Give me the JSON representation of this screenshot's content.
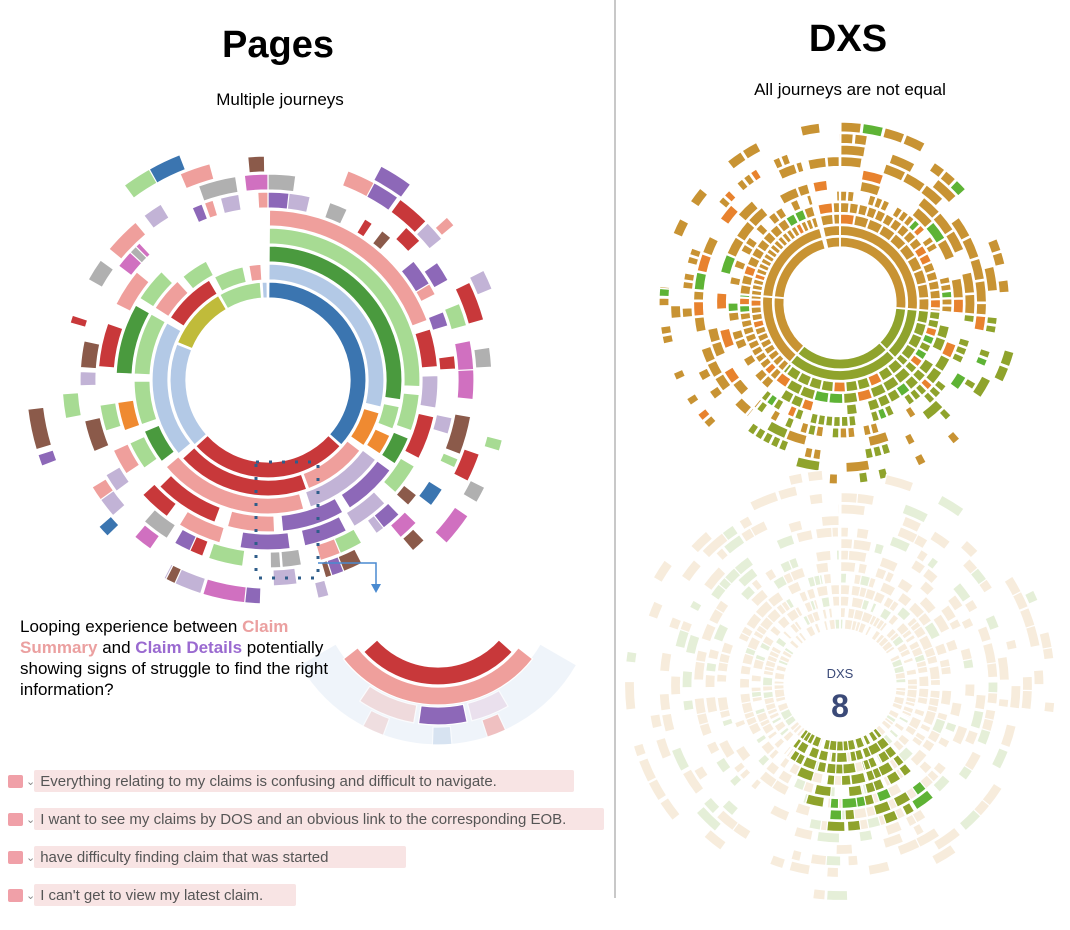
{
  "left": {
    "title": "Pages",
    "subtitle": "Multiple journeys",
    "callout": {
      "prefix": "Looping experience between ",
      "claim_summary": "Claim Summary",
      "middle": " and ",
      "claim_details": "Claim Details",
      "suffix": " potentially showing signs of struggle to find the right information?"
    },
    "comments": [
      {
        "text": "Everything relating to my claims is confusing and difficult to navigate.",
        "icon": "sad-face-icon"
      },
      {
        "text": "I want to see my claims by DOS and an obvious link to the corresponding EOB.",
        "icon": "sad-face-icon"
      },
      {
        "text": "have difficulty finding claim that was started",
        "icon": "sad-face-icon"
      },
      {
        "text": "I can't get to view my latest claim.",
        "icon": "sad-face-icon"
      }
    ]
  },
  "right": {
    "title": "DXS",
    "subtitle": "All journeys are not equal",
    "dxs_label": "DXS",
    "dxs_value": "8"
  },
  "colors": {
    "blue": "#3b75b0",
    "light_blue": "#b3c9e6",
    "red": "#c8383a",
    "pink": "#ef9f9c",
    "green": "#4a9a3e",
    "light_green": "#a7db93",
    "orange": "#ef8a31",
    "purple": "#8d68b8",
    "lavender": "#c2b3d6",
    "olive": "#c0bb3a",
    "dxs_gold": "#c89333",
    "dxs_olive": "#8fa32c",
    "dxs_green": "#5eb335",
    "dxs_orange": "#e8822e"
  }
}
